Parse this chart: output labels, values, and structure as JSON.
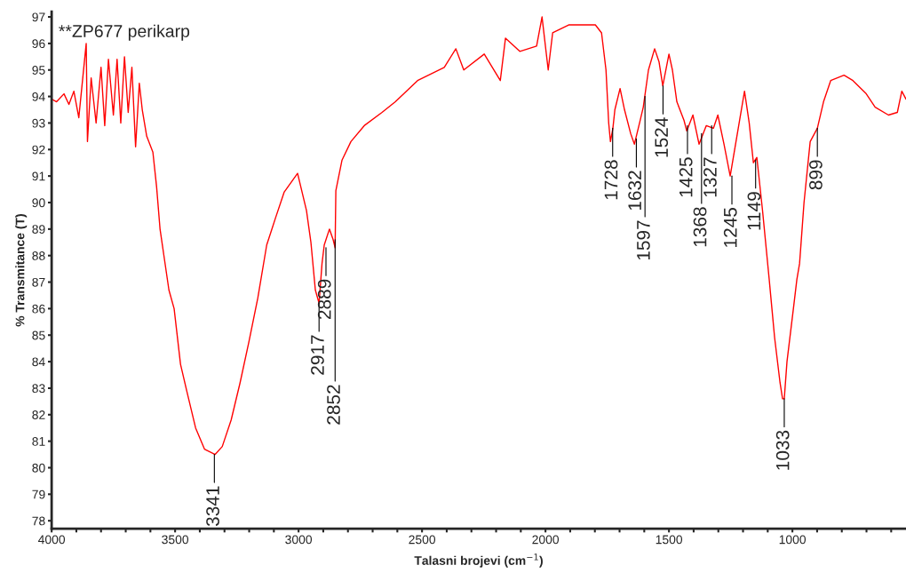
{
  "chart_data": {
    "type": "line",
    "title": "**ZP677 perikarp",
    "xlabel": "Talasni brojevi (cm$^{−1}$)",
    "ylabel": "% Transmitance (T)",
    "xlim": [
      4000,
      540
    ],
    "ylim": [
      77.7,
      97.2
    ],
    "xticks": [
      4000,
      {
        "value": 3900,
        "label": null
      },
      {
        "value": 3800,
        "label": null
      },
      {
        "value": 3700,
        "label": null
      },
      {
        "value": 3600,
        "label": null
      },
      3500,
      {
        "value": 3400,
        "label": null
      },
      {
        "value": 3300,
        "label": null
      },
      {
        "value": 3200,
        "label": null
      },
      {
        "value": 3100,
        "label": null
      },
      3000,
      {
        "value": 2900,
        "label": null
      },
      {
        "value": 2800,
        "label": null
      },
      {
        "value": 2700,
        "label": null
      },
      {
        "value": 2600,
        "label": null
      },
      2500,
      {
        "value": 2400,
        "label": null
      },
      {
        "value": 2300,
        "label": null
      },
      {
        "value": 2200,
        "label": null
      },
      {
        "value": 2100,
        "label": null
      },
      2000,
      {
        "value": 1900,
        "label": null
      },
      {
        "value": 1800,
        "label": null
      },
      {
        "value": 1700,
        "label": null
      },
      {
        "value": 1600,
        "label": null
      },
      1500,
      {
        "value": 1400,
        "label": null
      },
      {
        "value": 1300,
        "label": null
      },
      {
        "value": 1200,
        "label": null
      },
      {
        "value": 1100,
        "label": null
      },
      1000,
      {
        "value": 900,
        "label": null
      },
      {
        "value": 800,
        "label": null
      },
      {
        "value": 700,
        "label": null
      },
      {
        "value": 600,
        "label": null
      }
    ],
    "yticks": [
      78,
      79,
      80,
      81,
      82,
      83,
      84,
      85,
      86,
      87,
      88,
      89,
      90,
      91,
      92,
      93,
      94,
      95,
      96,
      97
    ],
    "grid": false,
    "line_style": "solid",
    "marker": "none",
    "series": [
      {
        "color": "#ff0000",
        "x": [
          4000,
          3980,
          3950,
          3930,
          3910,
          3890,
          3875,
          3860,
          3855,
          3840,
          3820,
          3800,
          3785,
          3770,
          3750,
          3735,
          3720,
          3705,
          3690,
          3675,
          3660,
          3645,
          3633,
          3615,
          3590,
          3575,
          3561,
          3525,
          3504,
          3478,
          3453,
          3417,
          3381,
          3338,
          3309,
          3273,
          3237,
          3201,
          3165,
          3129,
          3094,
          3058,
          3004,
          2968,
          2950,
          2932,
          2917,
          2905,
          2896,
          2875,
          2860,
          2852,
          2849,
          2824,
          2788,
          2734,
          2662,
          2608,
          2518,
          2410,
          2363,
          2331,
          2248,
          2183,
          2162,
          2104,
          2036,
          2014,
          1989,
          1971,
          1906,
          1798,
          1773,
          1755,
          1744,
          1737,
          1727,
          1719,
          1698,
          1680,
          1655,
          1640,
          1619,
          1604,
          1583,
          1558,
          1540,
          1525,
          1500,
          1486,
          1468,
          1439,
          1428,
          1403,
          1378,
          1349,
          1320,
          1302,
          1277,
          1252,
          1223,
          1194,
          1175,
          1158,
          1144,
          1121,
          1094,
          1083,
          1072,
          1050,
          1040,
          1033,
          1022,
          996,
          982,
          971,
          953,
          928,
          899,
          874,
          845,
          791,
          755,
          701,
          665,
          611,
          575,
          557,
          540
        ],
        "values": [
          93.9,
          93.8,
          94.1,
          93.7,
          94.2,
          93.2,
          94.6,
          96.0,
          92.3,
          94.7,
          93.0,
          95.1,
          92.9,
          95.4,
          93.3,
          95.4,
          93.0,
          95.5,
          93.4,
          95.1,
          92.1,
          94.5,
          93.5,
          92.5,
          91.9,
          90.6,
          89.0,
          86.7,
          86.0,
          83.9,
          82.9,
          81.5,
          80.7,
          80.5,
          80.8,
          81.8,
          83.2,
          84.75,
          86.4,
          88.4,
          89.4,
          90.4,
          91.1,
          89.7,
          88.5,
          86.7,
          86.2,
          87.7,
          88.4,
          89.0,
          88.6,
          88.3,
          90.45,
          91.6,
          92.3,
          92.9,
          93.4,
          93.8,
          94.6,
          95.1,
          95.8,
          95.0,
          95.6,
          94.6,
          96.2,
          95.7,
          95.9,
          97.0,
          95.0,
          96.4,
          96.7,
          96.7,
          96.4,
          95.0,
          93.0,
          92.3,
          92.8,
          93.5,
          94.3,
          93.5,
          92.6,
          92.2,
          93.0,
          93.6,
          95.0,
          95.8,
          95.3,
          94.4,
          95.6,
          95.0,
          93.8,
          93.1,
          92.7,
          93.3,
          92.2,
          92.9,
          92.8,
          93.3,
          92.2,
          91.0,
          92.6,
          94.2,
          93.0,
          91.5,
          91.7,
          89.7,
          87.1,
          86.0,
          84.9,
          83.2,
          82.6,
          82.6,
          84.0,
          86.0,
          87.1,
          87.7,
          90.0,
          92.3,
          92.8,
          93.8,
          94.6,
          94.8,
          94.6,
          94.1,
          93.6,
          93.3,
          93.4,
          94.2,
          93.9
        ]
      }
    ],
    "annotations": [
      {
        "text": "3341",
        "x": 3341,
        "y": 80.5
      },
      {
        "text": "2917",
        "x": 2917,
        "y": 86.2
      },
      {
        "text": "2889",
        "x": 2889,
        "y": 88.3
      },
      {
        "text": "2852",
        "x": 2852,
        "y": 88.6
      },
      {
        "text": "1728",
        "x": 1728,
        "y": 92.8
      },
      {
        "text": "1632",
        "x": 1632,
        "y": 92.4
      },
      {
        "text": "1597",
        "x": 1597,
        "y": 94.0
      },
      {
        "text": "1524",
        "x": 1524,
        "y": 94.4
      },
      {
        "text": "1425",
        "x": 1425,
        "y": 92.9
      },
      {
        "text": "1368",
        "x": 1368,
        "y": 92.6
      },
      {
        "text": "1327",
        "x": 1327,
        "y": 92.9
      },
      {
        "text": "1245",
        "x": 1245,
        "y": 91.0
      },
      {
        "text": "1149",
        "x": 1149,
        "y": 91.6
      },
      {
        "text": "1033",
        "x": 1033,
        "y": 82.6
      },
      {
        "text": "899",
        "x": 899,
        "y": 92.8
      }
    ]
  }
}
